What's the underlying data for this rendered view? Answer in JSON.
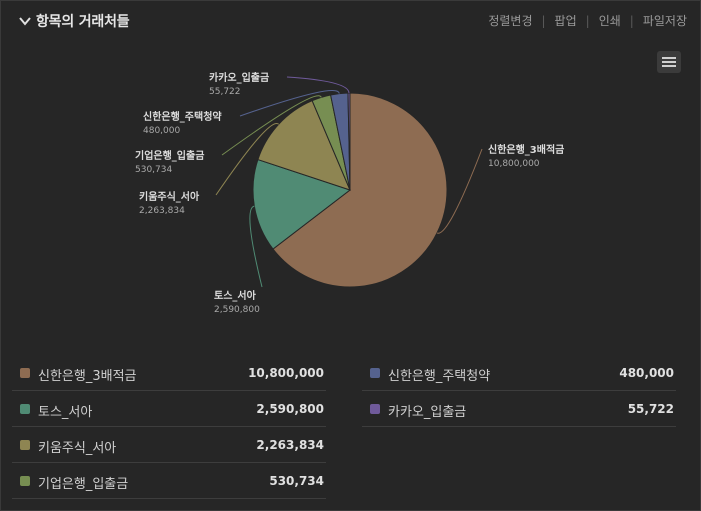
{
  "header": {
    "title": "항목의 거래처들",
    "actions": [
      "정렬변경",
      "팝업",
      "인쇄",
      "파일저장"
    ]
  },
  "colors": {
    "background": "#262626",
    "slices": [
      "#8e6c52",
      "#508b74",
      "#8e8552",
      "#778e52",
      "#55628e",
      "#6f5a9a"
    ]
  },
  "chart_data": {
    "type": "pie",
    "categories": [
      "신한은행_3배적금",
      "토스_서아",
      "키움주식_서아",
      "기업은행_입출금",
      "신한은행_주택청약",
      "카카오_입출금"
    ],
    "values": [
      10800000,
      2590800,
      2263834,
      530734,
      480000,
      55722
    ],
    "value_labels": [
      "10,800,000",
      "2,590,800",
      "2,263,834",
      "530,734",
      "480,000",
      "55,722"
    ]
  },
  "legend": {
    "left": [
      {
        "name": "신한은행_3배적금",
        "value": "10,800,000",
        "color": "#8e6c52"
      },
      {
        "name": "토스_서아",
        "value": "2,590,800",
        "color": "#508b74"
      },
      {
        "name": "키움주식_서아",
        "value": "2,263,834",
        "color": "#8e8552"
      },
      {
        "name": "기업은행_입출금",
        "value": "530,734",
        "color": "#778e52"
      }
    ],
    "right": [
      {
        "name": "신한은행_주택청약",
        "value": "480,000",
        "color": "#55628e"
      },
      {
        "name": "카카오_입출금",
        "value": "55,722",
        "color": "#6f5a9a"
      }
    ]
  }
}
